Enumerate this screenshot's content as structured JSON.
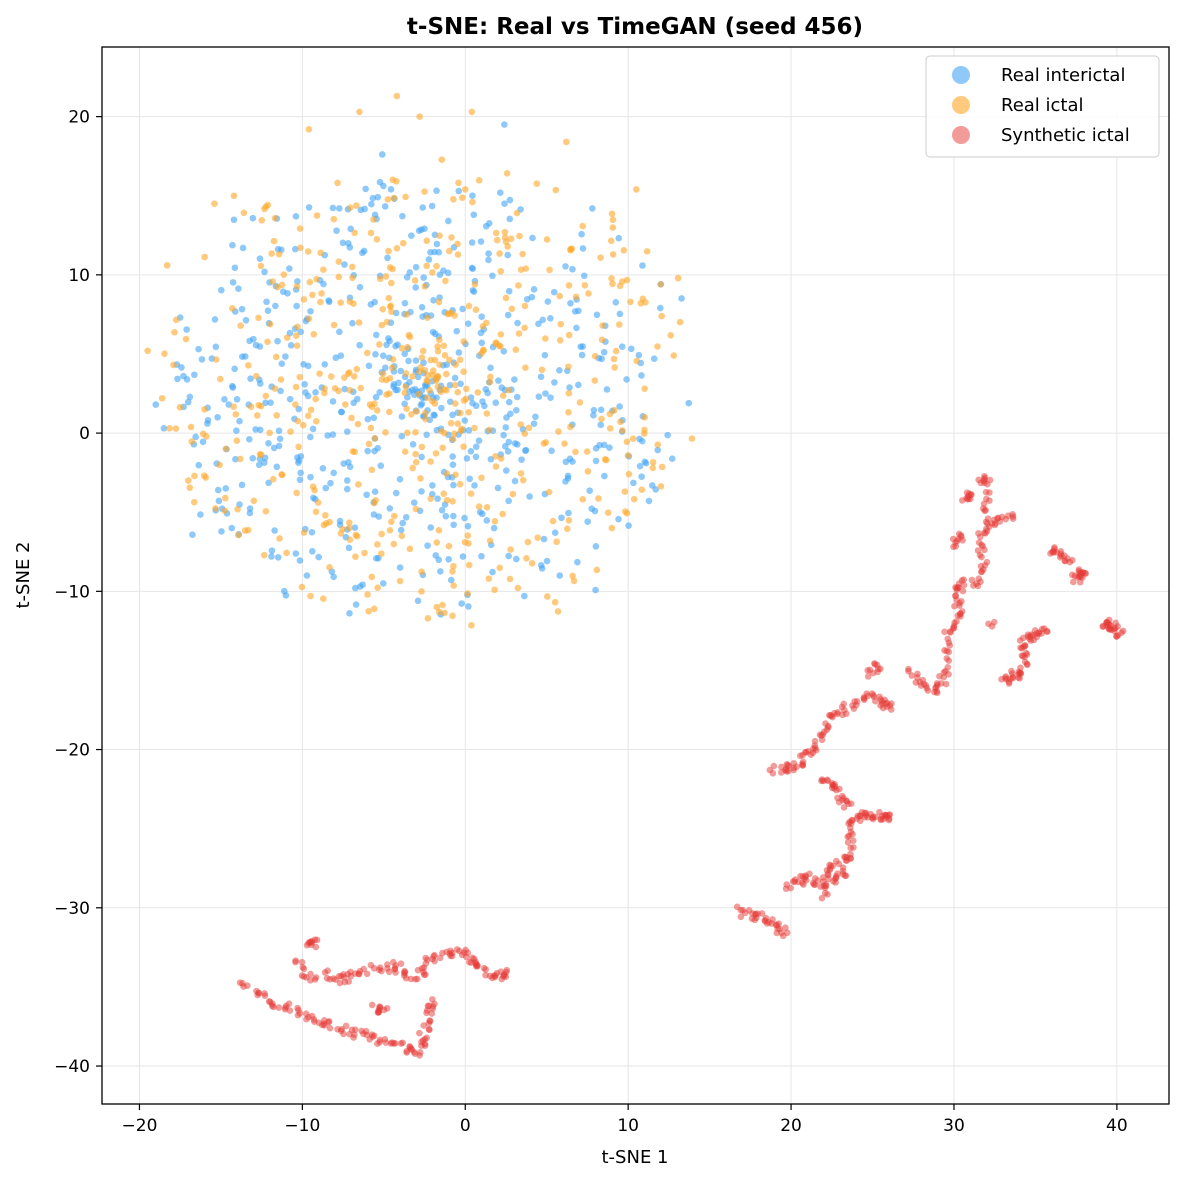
{
  "chart_data": {
    "type": "scatter",
    "title": "t-SNE: Real vs TimeGAN (seed 456)",
    "xlabel": "t-SNE 1",
    "ylabel": "t-SNE 2",
    "xlim": [
      -22.3,
      43.2
    ],
    "ylim": [
      -42.4,
      24.4
    ],
    "xticks": [
      -20,
      -10,
      0,
      10,
      20,
      30,
      40
    ],
    "yticks": [
      -40,
      -30,
      -20,
      -10,
      0,
      10,
      20
    ],
    "xtick_labels": [
      "−20",
      "−10",
      "0",
      "10",
      "20",
      "30",
      "40"
    ],
    "ytick_labels": [
      "−40",
      "−30",
      "−20",
      "−10",
      "0",
      "10",
      "20"
    ],
    "grid": true,
    "legend_position": "top-right",
    "series": [
      {
        "name": "Real interictal",
        "color": "#42a5f5",
        "cluster": {
          "center": [
            -2.5,
            2.5
          ],
          "radius": 21,
          "count": 600,
          "seed": 11
        },
        "points": [
          [
            -19,
            1.8
          ],
          [
            -18.5,
            0.3
          ],
          [
            -17.5,
            7.3
          ],
          [
            -17.3,
            3.6
          ],
          [
            -14.7,
            -3.5
          ],
          [
            -13.9,
            -6.4
          ],
          [
            -11.9,
            -7.8
          ],
          [
            -12.2,
            8.3
          ],
          [
            -10.8,
            10.4
          ],
          [
            -10.1,
            6.4
          ],
          [
            -9.5,
            7.7
          ],
          [
            -4.0,
            -8.5
          ],
          [
            -2.9,
            -10.6
          ],
          [
            -0.4,
            15.3
          ],
          [
            2.4,
            19.5
          ],
          [
            5.8,
            -9.0
          ],
          [
            7.8,
            14.2
          ],
          [
            11.1,
            -1.9
          ],
          [
            11.6,
            4.7
          ],
          [
            12.0,
            9.4
          ]
        ]
      },
      {
        "name": "Real ictal",
        "color": "#ffa726",
        "cluster": {
          "center": [
            -2.0,
            3.0
          ],
          "radius": 22,
          "count": 520,
          "seed": 29
        },
        "points": [
          [
            -19.5,
            5.2
          ],
          [
            -18.3,
            10.6
          ],
          [
            -17.0,
            -3.0
          ],
          [
            -16.0,
            1.5
          ],
          [
            -15.4,
            14.5
          ],
          [
            -14.2,
            15.0
          ],
          [
            -9.6,
            19.2
          ],
          [
            -6.5,
            20.3
          ],
          [
            -4.2,
            21.3
          ],
          [
            -2.8,
            20.0
          ],
          [
            0.4,
            20.3
          ],
          [
            1.8,
            -9.9
          ],
          [
            -1.6,
            -11.3
          ],
          [
            -6.0,
            -10.2
          ],
          [
            -9.5,
            -10.3
          ],
          [
            6.2,
            18.4
          ],
          [
            10.5,
            15.4
          ],
          [
            11.0,
            0.2
          ],
          [
            12.0,
            9.4
          ],
          [
            12.8,
            4.9
          ],
          [
            9.8,
            -3.7
          ],
          [
            9.0,
            -6.0
          ]
        ]
      },
      {
        "name": "Synthetic ictal",
        "color": "#e53935",
        "paths": [
          [
            [
              -13.7,
              -34.5
            ],
            [
              -12.5,
              -35.5
            ],
            [
              -11.5,
              -36.0
            ],
            [
              -10.5,
              -36.5
            ],
            [
              -9.5,
              -36.9
            ],
            [
              -8.5,
              -37.3
            ],
            [
              -7.5,
              -37.7
            ],
            [
              -6.5,
              -38.0
            ],
            [
              -5.5,
              -38.3
            ],
            [
              -4.5,
              -38.6
            ],
            [
              -3.5,
              -38.9
            ],
            [
              -2.8,
              -39.1
            ],
            [
              -2.6,
              -38.0
            ],
            [
              -2.3,
              -37.0
            ],
            [
              -2.1,
              -36.0
            ]
          ],
          [
            [
              -10.3,
              -33.3
            ],
            [
              -9.7,
              -34.5
            ],
            [
              -8.5,
              -34.2
            ],
            [
              -7.5,
              -34.5
            ],
            [
              -6.8,
              -34.2
            ],
            [
              -5.5,
              -33.8
            ],
            [
              -4.5,
              -33.9
            ]
          ],
          [
            [
              -9.5,
              -32.2
            ],
            [
              -9.2,
              -32.3
            ]
          ],
          [
            [
              -4.3,
              -33.5
            ],
            [
              -3.5,
              -34.5
            ],
            [
              -2.5,
              -34.0
            ],
            [
              -2.0,
              -33.0
            ],
            [
              -1.0,
              -32.9
            ],
            [
              0.0,
              -32.9
            ],
            [
              0.5,
              -33.5
            ],
            [
              1.0,
              -34.0
            ],
            [
              2.0,
              -34.3
            ],
            [
              2.5,
              -34.2
            ]
          ],
          [
            [
              -5.6,
              -36.3
            ],
            [
              -5.0,
              -36.5
            ]
          ],
          [
            [
              16.8,
              -30.2
            ],
            [
              17.5,
              -30.5
            ],
            [
              18.3,
              -30.6
            ],
            [
              19.0,
              -31.0
            ],
            [
              19.5,
              -31.5
            ]
          ],
          [
            [
              19.8,
              -28.6
            ],
            [
              20.5,
              -28.3
            ],
            [
              21.0,
              -28.0
            ],
            [
              21.8,
              -28.5
            ],
            [
              22.3,
              -27.5
            ],
            [
              23.0,
              -27.2
            ],
            [
              23.8,
              -26.8
            ],
            [
              23.6,
              -25.5
            ],
            [
              23.8,
              -24.4
            ],
            [
              24.4,
              -24.1
            ],
            [
              25.0,
              -24.2
            ],
            [
              25.6,
              -24.2
            ],
            [
              26.0,
              -24.2
            ]
          ],
          [
            [
              22.0,
              -29.3
            ],
            [
              22.5,
              -28.2
            ],
            [
              23.2,
              -27.8
            ]
          ],
          [
            [
              18.8,
              -21.3
            ],
            [
              19.6,
              -21.2
            ],
            [
              20.3,
              -21.0
            ],
            [
              20.8,
              -20.5
            ],
            [
              21.5,
              -20.0
            ],
            [
              22.0,
              -19.0
            ],
            [
              22.5,
              -18.0
            ],
            [
              23.2,
              -17.5
            ],
            [
              24.0,
              -17.1
            ],
            [
              24.8,
              -16.5
            ],
            [
              25.5,
              -17.0
            ],
            [
              26.0,
              -17.3
            ]
          ],
          [
            [
              22.0,
              -22.0
            ],
            [
              22.5,
              -22.2
            ],
            [
              23.0,
              -22.8
            ],
            [
              23.5,
              -23.5
            ]
          ],
          [
            [
              24.8,
              -15.2
            ],
            [
              25.3,
              -14.8
            ]
          ],
          [
            [
              27.3,
              -14.8
            ],
            [
              28.0,
              -15.8
            ],
            [
              28.8,
              -16.3
            ],
            [
              29.3,
              -15.8
            ],
            [
              29.8,
              -14.5
            ],
            [
              29.5,
              -13.0
            ],
            [
              30.0,
              -12.0
            ],
            [
              30.3,
              -11.0
            ],
            [
              30.0,
              -10.0
            ],
            [
              30.6,
              -9.5
            ],
            [
              31.5,
              -9.4
            ],
            [
              31.9,
              -8.0
            ],
            [
              31.5,
              -6.8
            ],
            [
              32.0,
              -5.8
            ],
            [
              32.5,
              -5.5
            ],
            [
              33.4,
              -5.3
            ]
          ],
          [
            [
              30.2,
              -7.0
            ],
            [
              30.3,
              -6.5
            ]
          ],
          [
            [
              30.6,
              -4.2
            ],
            [
              30.9,
              -3.9
            ]
          ],
          [
            [
              31.6,
              -3.0
            ],
            [
              32.1,
              -3.0
            ],
            [
              32.0,
              -4.8
            ]
          ],
          [
            [
              32.2,
              -12.2
            ]
          ],
          [
            [
              33.0,
              -15.8
            ],
            [
              33.5,
              -15.3
            ],
            [
              34.0,
              -15.2
            ],
            [
              34.5,
              -14.5
            ],
            [
              34.2,
              -13.5
            ],
            [
              34.5,
              -13.0
            ],
            [
              35.0,
              -12.7
            ],
            [
              35.5,
              -12.4
            ]
          ],
          [
            [
              36.0,
              -7.4
            ],
            [
              36.5,
              -7.6
            ],
            [
              37.0,
              -8.0
            ]
          ],
          [
            [
              37.4,
              -9.3
            ],
            [
              37.7,
              -9.0
            ],
            [
              37.9,
              -8.8
            ]
          ],
          [
            [
              39.2,
              -12.2
            ],
            [
              39.5,
              -12.0
            ],
            [
              39.8,
              -12.4
            ],
            [
              40.2,
              -12.7
            ]
          ]
        ]
      }
    ]
  }
}
